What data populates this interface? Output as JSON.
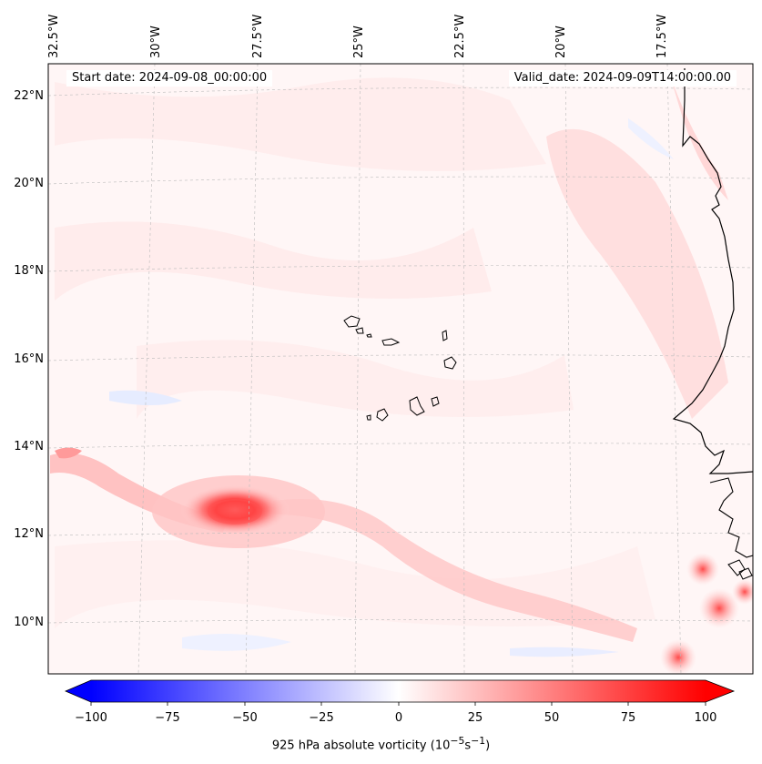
{
  "map": {
    "start_date": "Start date: 2024-09-08_00:00:00",
    "valid_date": "Valid_date: 2024-09-09T14:00:00.00",
    "lat_labels": [
      "22°N",
      "20°N",
      "18°N",
      "16°N",
      "14°N",
      "12°N",
      "10°N"
    ],
    "lon_labels": [
      "32.5°W",
      "30°W",
      "27.5°W",
      "25°W",
      "22.5°W",
      "20°W",
      "17.5°W"
    ],
    "field": "925 hPa absolute vorticity",
    "features": [
      "Cape Verde islands",
      "West African coastline",
      "vortex near 12.5°N 27.5°W"
    ]
  },
  "colorbar": {
    "ticks": [
      "−100",
      "−75",
      "−50",
      "−25",
      "0",
      "25",
      "50",
      "75",
      "100"
    ],
    "label": "925 hPa absolute vorticity (10",
    "label_exp1": "−5",
    "label_mid": "s",
    "label_exp2": "−1",
    "label_end": ")",
    "min_color": "#0000ff",
    "mid_color": "#ffffff",
    "max_color": "#ff0000"
  }
}
